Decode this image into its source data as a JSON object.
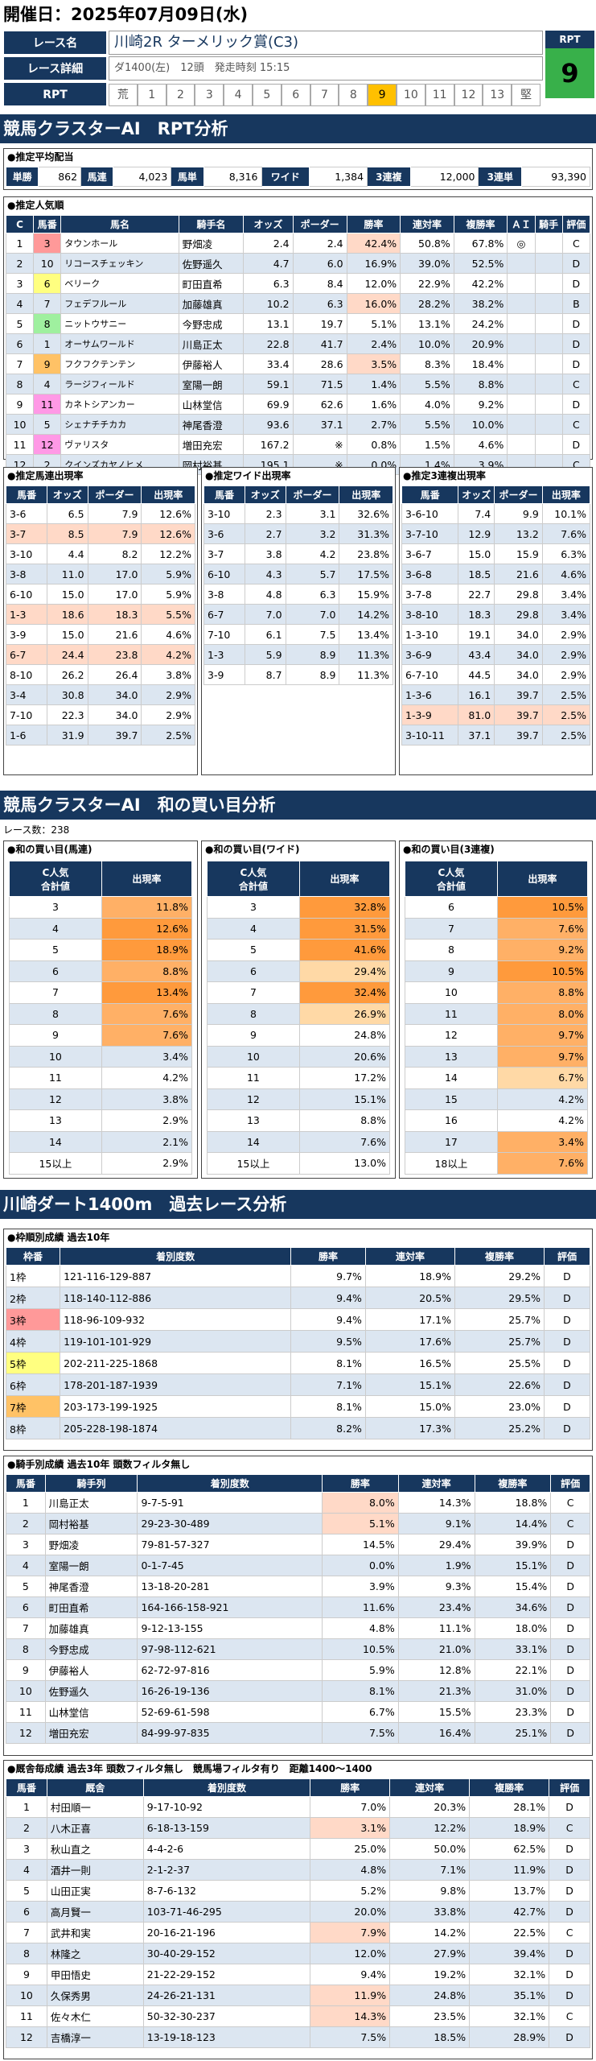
{
  "header": {
    "date": "開催日：2025年07月09日(水)"
  },
  "race": {
    "name_label": "レース名",
    "name": "川崎2R ターメリック賞(C3)",
    "detail_label": "レース詳細",
    "detail": "ダ1400(左)　12頭　発走時刻 15:15",
    "rpt_label": "RPT",
    "rpt_box_label": "RPT",
    "rpt_value": "9",
    "rpt_cells": [
      "荒",
      "1",
      "2",
      "3",
      "4",
      "5",
      "6",
      "7",
      "8",
      "9",
      "10",
      "11",
      "12",
      "13",
      "堅"
    ],
    "rpt_active": "9"
  },
  "sec1": "競馬クラスターAI　RPT分析",
  "payout": {
    "title": "●推定平均配当",
    "items": [
      [
        "単勝",
        "862"
      ],
      [
        "馬連",
        "4,023"
      ],
      [
        "馬単",
        "8,316"
      ],
      [
        "ワイド",
        "1,384"
      ],
      [
        "3連複",
        "12,000"
      ],
      [
        "3連単",
        "93,390"
      ]
    ]
  },
  "popularity": {
    "title": "●推定人気順",
    "headers": [
      "C",
      "馬番",
      "馬名",
      "騎手名",
      "オッズ",
      "ポーダー",
      "勝率",
      "連対率",
      "複勝率",
      "ＡＩ",
      "騎手",
      "評価"
    ],
    "rows": [
      [
        "1",
        "3",
        "タウンホール",
        "野畑凌",
        "2.4",
        "2.4",
        "42.4%",
        "50.8%",
        "67.8%",
        "◎",
        "",
        "C"
      ],
      [
        "2",
        "10",
        "リコースチェッキン",
        "佐野遥久",
        "4.7",
        "6.0",
        "16.9%",
        "39.0%",
        "52.5%",
        "",
        "",
        "D"
      ],
      [
        "3",
        "6",
        "ベリーク",
        "町田直希",
        "6.3",
        "8.4",
        "12.0%",
        "22.9%",
        "42.2%",
        "",
        "",
        "D"
      ],
      [
        "4",
        "7",
        "フェデフルール",
        "加藤雄真",
        "10.2",
        "6.3",
        "16.0%",
        "28.2%",
        "38.2%",
        "",
        "",
        "B"
      ],
      [
        "5",
        "8",
        "ニットウサニー",
        "今野忠成",
        "13.1",
        "19.7",
        "5.1%",
        "13.1%",
        "24.2%",
        "",
        "",
        "D"
      ],
      [
        "6",
        "1",
        "オーサムワールド",
        "川島正太",
        "22.8",
        "41.7",
        "2.4%",
        "10.0%",
        "20.9%",
        "",
        "",
        "D"
      ],
      [
        "7",
        "9",
        "フクフクテンテン",
        "伊藤裕人",
        "33.4",
        "28.6",
        "3.5%",
        "8.3%",
        "18.4%",
        "",
        "",
        "D"
      ],
      [
        "8",
        "4",
        "ラージフィールド",
        "室陽一朗",
        "59.1",
        "71.5",
        "1.4%",
        "5.5%",
        "8.8%",
        "",
        "",
        "C"
      ],
      [
        "9",
        "11",
        "カネトシアンカー",
        "山林堂信",
        "69.9",
        "62.6",
        "1.6%",
        "4.0%",
        "9.2%",
        "",
        "",
        "D"
      ],
      [
        "10",
        "5",
        "シェナチチカカ",
        "神尾香澄",
        "93.6",
        "37.1",
        "2.7%",
        "5.5%",
        "10.0%",
        "",
        "",
        "C"
      ],
      [
        "11",
        "12",
        "ヴァリスタ",
        "増田充宏",
        "167.2",
        "※",
        "0.8%",
        "1.5%",
        "4.6%",
        "",
        "",
        "D"
      ],
      [
        "12",
        "2",
        "クインズカヤノヒメ",
        "岡村裕基",
        "195.1",
        "※",
        "0.0%",
        "1.4%",
        "3.9%",
        "",
        "",
        "C"
      ]
    ]
  },
  "quin": {
    "title": "●推定馬連出現率",
    "headers": [
      "馬番",
      "オッズ",
      "ポーダー",
      "出現率"
    ],
    "rows": [
      [
        "3-6",
        "6.5",
        "7.9",
        "12.6%"
      ],
      [
        "3-7",
        "8.5",
        "7.9",
        "12.6%"
      ],
      [
        "3-10",
        "4.4",
        "8.2",
        "12.2%"
      ],
      [
        "3-8",
        "11.0",
        "17.0",
        "5.9%"
      ],
      [
        "6-10",
        "15.0",
        "17.0",
        "5.9%"
      ],
      [
        "1-3",
        "18.6",
        "18.3",
        "5.5%"
      ],
      [
        "3-9",
        "15.0",
        "21.6",
        "4.6%"
      ],
      [
        "6-7",
        "24.4",
        "23.8",
        "4.2%"
      ],
      [
        "8-10",
        "26.2",
        "26.4",
        "3.8%"
      ],
      [
        "3-4",
        "30.8",
        "34.0",
        "2.9%"
      ],
      [
        "7-10",
        "22.3",
        "34.0",
        "2.9%"
      ],
      [
        "1-6",
        "31.9",
        "39.7",
        "2.5%"
      ]
    ]
  },
  "wide": {
    "title": "●推定ワイド出現率",
    "headers": [
      "馬番",
      "オッズ",
      "ポーダー",
      "出現率"
    ],
    "rows": [
      [
        "3-10",
        "2.3",
        "3.1",
        "32.6%"
      ],
      [
        "3-6",
        "2.7",
        "3.2",
        "31.3%"
      ],
      [
        "3-7",
        "3.8",
        "4.2",
        "23.8%"
      ],
      [
        "6-10",
        "4.3",
        "5.7",
        "17.5%"
      ],
      [
        "3-8",
        "4.8",
        "6.3",
        "15.9%"
      ],
      [
        "6-7",
        "7.0",
        "7.0",
        "14.2%"
      ],
      [
        "7-10",
        "6.1",
        "7.5",
        "13.4%"
      ],
      [
        "1-3",
        "5.9",
        "8.9",
        "11.3%"
      ],
      [
        "3-9",
        "8.7",
        "8.9",
        "11.3%"
      ]
    ]
  },
  "trio": {
    "title": "●推定3連複出現率",
    "headers": [
      "馬番",
      "オッズ",
      "ポーダー",
      "出現率"
    ],
    "rows": [
      [
        "3-6-10",
        "7.4",
        "9.9",
        "10.1%"
      ],
      [
        "3-7-10",
        "12.9",
        "13.2",
        "7.6%"
      ],
      [
        "3-6-7",
        "15.0",
        "15.9",
        "6.3%"
      ],
      [
        "3-6-8",
        "18.5",
        "21.6",
        "4.6%"
      ],
      [
        "3-7-8",
        "22.7",
        "29.8",
        "3.4%"
      ],
      [
        "3-8-10",
        "18.3",
        "29.8",
        "3.4%"
      ],
      [
        "1-3-10",
        "19.1",
        "34.0",
        "2.9%"
      ],
      [
        "3-6-9",
        "43.4",
        "34.0",
        "2.9%"
      ],
      [
        "6-7-10",
        "44.5",
        "34.0",
        "2.9%"
      ],
      [
        "1-3-6",
        "16.1",
        "39.7",
        "2.5%"
      ],
      [
        "1-3-9",
        "81.0",
        "39.7",
        "2.5%"
      ],
      [
        "3-10-11",
        "37.1",
        "39.7",
        "2.5%"
      ]
    ]
  },
  "sec2": "競馬クラスターAI　和の買い目分析",
  "races_count": "レース数：238",
  "sum_quin": {
    "title": "●和の買い目(馬連)",
    "h1": "C人気\n合計値",
    "h2": "出現率",
    "rows": [
      [
        "3",
        "11.8%"
      ],
      [
        "4",
        "12.6%"
      ],
      [
        "5",
        "18.9%"
      ],
      [
        "6",
        "8.8%"
      ],
      [
        "7",
        "13.4%"
      ],
      [
        "8",
        "7.6%"
      ],
      [
        "9",
        "7.6%"
      ],
      [
        "10",
        "3.4%"
      ],
      [
        "11",
        "4.2%"
      ],
      [
        "12",
        "3.8%"
      ],
      [
        "13",
        "2.9%"
      ],
      [
        "14",
        "2.1%"
      ],
      [
        "15以上",
        "2.9%"
      ]
    ]
  },
  "sum_wide": {
    "title": "●和の買い目(ワイド)",
    "h1": "C人気\n合計値",
    "h2": "出現率",
    "rows": [
      [
        "3",
        "32.8%"
      ],
      [
        "4",
        "31.5%"
      ],
      [
        "5",
        "41.6%"
      ],
      [
        "6",
        "29.4%"
      ],
      [
        "7",
        "32.4%"
      ],
      [
        "8",
        "26.9%"
      ],
      [
        "9",
        "24.8%"
      ],
      [
        "10",
        "20.6%"
      ],
      [
        "11",
        "17.2%"
      ],
      [
        "12",
        "15.1%"
      ],
      [
        "13",
        "8.8%"
      ],
      [
        "14",
        "7.6%"
      ],
      [
        "15以上",
        "13.0%"
      ]
    ]
  },
  "sum_trio": {
    "title": "●和の買い目(3連複)",
    "h1": "C人気\n合計値",
    "h2": "出現率",
    "rows": [
      [
        "6",
        "10.5%"
      ],
      [
        "7",
        "7.6%"
      ],
      [
        "8",
        "9.2%"
      ],
      [
        "9",
        "10.5%"
      ],
      [
        "10",
        "8.8%"
      ],
      [
        "11",
        "8.0%"
      ],
      [
        "12",
        "9.7%"
      ],
      [
        "13",
        "9.7%"
      ],
      [
        "14",
        "6.7%"
      ],
      [
        "15",
        "4.2%"
      ],
      [
        "16",
        "4.2%"
      ],
      [
        "17",
        "3.4%"
      ],
      [
        "18以上",
        "7.6%"
      ]
    ]
  },
  "sec3": "川崎ダート1400m　過去レース分析",
  "gate": {
    "title": "●枠順別成績 過去10年",
    "headers": [
      "枠番",
      "着別度数",
      "勝率",
      "連対率",
      "複勝率",
      "評価"
    ],
    "rows": [
      [
        "1枠",
        "121-116-129-887",
        "9.7%",
        "18.9%",
        "29.2%",
        "D"
      ],
      [
        "2枠",
        "118-140-112-886",
        "9.4%",
        "20.5%",
        "29.5%",
        "D"
      ],
      [
        "3枠",
        "118-96-109-932",
        "9.4%",
        "17.1%",
        "25.7%",
        "D"
      ],
      [
        "4枠",
        "119-101-101-929",
        "9.5%",
        "17.6%",
        "25.7%",
        "D"
      ],
      [
        "5枠",
        "202-211-225-1868",
        "8.1%",
        "16.5%",
        "25.5%",
        "D"
      ],
      [
        "6枠",
        "178-201-187-1939",
        "7.1%",
        "15.1%",
        "22.6%",
        "D"
      ],
      [
        "7枠",
        "203-173-199-1925",
        "8.1%",
        "15.0%",
        "23.0%",
        "D"
      ],
      [
        "8枠",
        "205-228-198-1874",
        "8.2%",
        "17.3%",
        "25.2%",
        "D"
      ]
    ]
  },
  "jockey": {
    "title": "●騎手別成績 過去10年 頭数フィルタ無し",
    "headers": [
      "馬番",
      "騎手列",
      "着別度数",
      "勝率",
      "連対率",
      "複勝率",
      "評価"
    ],
    "rows": [
      [
        "1",
        "川島正太",
        "9-7-5-91",
        "8.0%",
        "14.3%",
        "18.8%",
        "C"
      ],
      [
        "2",
        "岡村裕基",
        "29-23-30-489",
        "5.1%",
        "9.1%",
        "14.4%",
        "C"
      ],
      [
        "3",
        "野畑凌",
        "79-81-57-327",
        "14.5%",
        "29.4%",
        "39.9%",
        "D"
      ],
      [
        "4",
        "室陽一朗",
        "0-1-7-45",
        "0.0%",
        "1.9%",
        "15.1%",
        "D"
      ],
      [
        "5",
        "神尾香澄",
        "13-18-20-281",
        "3.9%",
        "9.3%",
        "15.4%",
        "D"
      ],
      [
        "6",
        "町田直希",
        "164-166-158-921",
        "11.6%",
        "23.4%",
        "34.6%",
        "D"
      ],
      [
        "7",
        "加藤雄真",
        "9-12-13-155",
        "4.8%",
        "11.1%",
        "18.0%",
        "D"
      ],
      [
        "8",
        "今野忠成",
        "97-98-112-621",
        "10.5%",
        "21.0%",
        "33.1%",
        "D"
      ],
      [
        "9",
        "伊藤裕人",
        "62-72-97-816",
        "5.9%",
        "12.8%",
        "22.1%",
        "D"
      ],
      [
        "10",
        "佐野遥久",
        "16-26-19-136",
        "8.1%",
        "21.3%",
        "31.0%",
        "D"
      ],
      [
        "11",
        "山林堂信",
        "52-69-61-598",
        "6.7%",
        "15.5%",
        "23.3%",
        "D"
      ],
      [
        "12",
        "増田充宏",
        "84-99-97-835",
        "7.5%",
        "16.4%",
        "25.1%",
        "D"
      ]
    ]
  },
  "trainer": {
    "title": "●厩舎毎成績 過去3年 頭数フィルタ無し　競馬場フィルタ有り　距離1400〜1400",
    "headers": [
      "馬番",
      "厩舎",
      "着別度数",
      "勝率",
      "連対率",
      "複勝率",
      "評価"
    ],
    "rows": [
      [
        "1",
        "村田順一",
        "9-17-10-92",
        "7.0%",
        "20.3%",
        "28.1%",
        "D"
      ],
      [
        "2",
        "八木正喜",
        "6-18-13-159",
        "3.1%",
        "12.2%",
        "18.9%",
        "C"
      ],
      [
        "3",
        "秋山直之",
        "4-4-2-6",
        "25.0%",
        "50.0%",
        "62.5%",
        "D"
      ],
      [
        "4",
        "酒井一則",
        "2-1-2-37",
        "4.8%",
        "7.1%",
        "11.9%",
        "D"
      ],
      [
        "5",
        "山田正実",
        "8-7-6-132",
        "5.2%",
        "9.8%",
        "13.7%",
        "D"
      ],
      [
        "6",
        "高月賢一",
        "103-71-46-295",
        "20.0%",
        "33.8%",
        "42.7%",
        "D"
      ],
      [
        "7",
        "武井和実",
        "20-16-21-196",
        "7.9%",
        "14.2%",
        "22.5%",
        "C"
      ],
      [
        "8",
        "林隆之",
        "30-40-29-152",
        "12.0%",
        "27.9%",
        "39.4%",
        "D"
      ],
      [
        "9",
        "甲田悟史",
        "21-22-29-152",
        "9.4%",
        "19.2%",
        "32.1%",
        "D"
      ],
      [
        "10",
        "久保秀男",
        "24-26-21-131",
        "11.9%",
        "24.8%",
        "35.1%",
        "D"
      ],
      [
        "11",
        "佐々木仁",
        "50-32-30-237",
        "14.3%",
        "23.5%",
        "32.1%",
        "C"
      ],
      [
        "12",
        "吉橋淳一",
        "13-19-18-123",
        "7.5%",
        "18.5%",
        "28.9%",
        "D"
      ]
    ]
  },
  "colors": {
    "navy": "#17375e",
    "green": "#38b04a",
    "orange": "#ff9a3c"
  }
}
